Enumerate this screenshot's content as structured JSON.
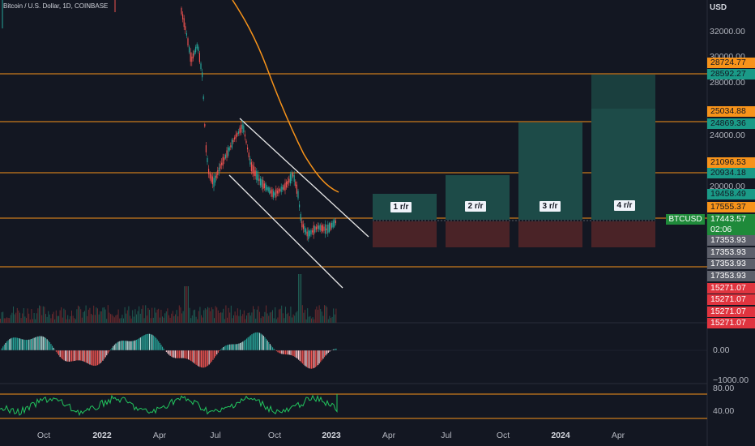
{
  "header": {
    "title": "Bitcoin / U.S. Dollar, 1D, COINBASE",
    "currency": "USD"
  },
  "symbol_tag": "BTCUSD",
  "price_axis_ticks": [
    "32000.00",
    "30000.00",
    "28000.00",
    "24000.00",
    "20000.00"
  ],
  "price_tags": [
    {
      "value": "28724.77",
      "kind": "orange"
    },
    {
      "value": "28592.27",
      "kind": "teal"
    },
    {
      "value": "25034.88",
      "kind": "orange"
    },
    {
      "value": "24869.36",
      "kind": "teal"
    },
    {
      "value": "21096.53",
      "kind": "orange"
    },
    {
      "value": "20934.18",
      "kind": "teal"
    },
    {
      "value": "19458.49",
      "kind": "teal"
    },
    {
      "value": "17555.37",
      "kind": "orange"
    },
    {
      "value": "17443.57",
      "kind": "green"
    },
    {
      "value": "02:06",
      "kind": "green"
    },
    {
      "value": "17353.93",
      "kind": "gray"
    },
    {
      "value": "17353.93",
      "kind": "gray"
    },
    {
      "value": "17353.93",
      "kind": "gray"
    },
    {
      "value": "17353.93",
      "kind": "gray"
    },
    {
      "value": "15271.07",
      "kind": "red"
    },
    {
      "value": "15271.07",
      "kind": "red"
    },
    {
      "value": "15271.07",
      "kind": "red"
    },
    {
      "value": "15271.07",
      "kind": "red"
    }
  ],
  "risk_reward_labels": [
    "1 r/r",
    "2 r/r",
    "3 r/r",
    "4 r/r"
  ],
  "macd_ticks": [
    "0.00",
    "−1000.00"
  ],
  "rsi_ticks": [
    "80.00",
    "40.00"
  ],
  "time_axis": [
    {
      "label": "Oct",
      "bold": false
    },
    {
      "label": "2022",
      "bold": true
    },
    {
      "label": "Apr",
      "bold": false
    },
    {
      "label": "Jul",
      "bold": false
    },
    {
      "label": "Oct",
      "bold": false
    },
    {
      "label": "2023",
      "bold": true
    },
    {
      "label": "Apr",
      "bold": false
    },
    {
      "label": "Jul",
      "bold": false
    },
    {
      "label": "Oct",
      "bold": false
    },
    {
      "label": "2024",
      "bold": true
    },
    {
      "label": "Apr",
      "bold": false
    }
  ],
  "colors": {
    "background": "#131722",
    "orange": "#f7931a",
    "teal": "#1a9a87",
    "green": "#1f8a3a",
    "red": "#e0343f",
    "gray": "#5d606b",
    "candle_up": "#26a69a",
    "candle_down": "#ef5350"
  }
}
